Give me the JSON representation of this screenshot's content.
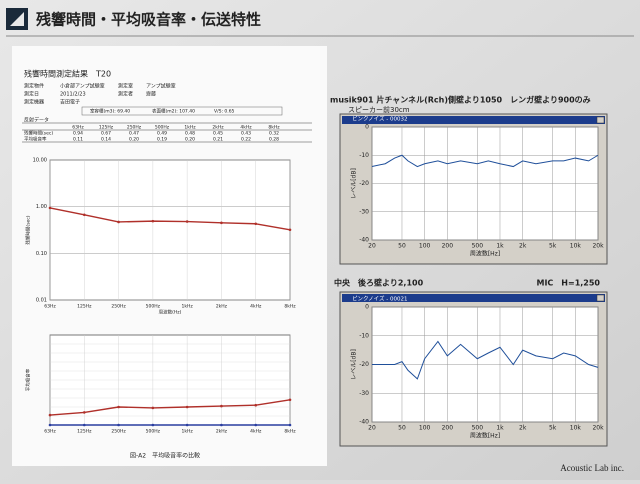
{
  "slide": {
    "title": "残響時間・平均吸音率・伝送特性",
    "footer": "Acoustic Lab inc."
  },
  "report": {
    "heading": "残響時間測定結果　T20",
    "info": [
      [
        "測定物件",
        "小倉部アンプ試験室",
        "測定室",
        "アンプ試験室"
      ],
      [
        "測定日",
        "2011/2/23",
        "測定者",
        "齋藤"
      ],
      [
        "測定機器",
        "吉田電子",
        "",
        ""
      ]
    ],
    "room": [
      "室容積(m3): 69.40",
      "表面積(m2): 107.40",
      "V/S: 0.65"
    ],
    "table": {
      "label": "反射データ",
      "header": [
        "63Hz",
        "125Hz",
        "250Hz",
        "500Hz",
        "1kHz",
        "2kHz",
        "4kHz",
        "8kHz"
      ],
      "rows": [
        [
          "残響時間(sec)",
          "0.94",
          "0.67",
          "0.47",
          "0.49",
          "0.48",
          "0.45",
          "0.43",
          "0.32"
        ],
        [
          "平均吸音率",
          "0.11",
          "0.14",
          "0.20",
          "0.19",
          "0.20",
          "0.21",
          "0.22",
          "0.28"
        ]
      ]
    },
    "caption": "図-A2　平均吸音率の比較"
  },
  "right": {
    "caption1": "musik901 片チャンネル(Rch)側壁より1050　レンガ壁より900のみ",
    "caption2": "スピーカー前30cm",
    "caption3": "中央　後ろ壁より2,100",
    "caption4": "MIC　H=1,250"
  },
  "chart_data": [
    {
      "type": "line",
      "log_y": true,
      "x_label": "周波数(Hz)",
      "y_label": "残響時間(sec)",
      "categories": [
        "63Hz",
        "125Hz",
        "250Hz",
        "500Hz",
        "1kHz",
        "2kHz",
        "4kHz",
        "8kHz"
      ],
      "series": [
        {
          "color": "#b0302a",
          "values": [
            0.94,
            0.67,
            0.47,
            0.49,
            0.48,
            0.45,
            0.43,
            0.32
          ]
        }
      ],
      "ylim": [
        0.01,
        10
      ],
      "yticks": [
        {
          "value": 10,
          "label": "10.00"
        },
        {
          "value": 1,
          "label": "1.00"
        },
        {
          "value": 0.1,
          "label": "0.10"
        },
        {
          "value": 0.01,
          "label": "0.01"
        }
      ]
    },
    {
      "type": "line",
      "y_label": "平均吸音率",
      "categories": [
        "63Hz",
        "125Hz",
        "250Hz",
        "500Hz",
        "1kHz",
        "2kHz",
        "4kHz",
        "8kHz"
      ],
      "series": [
        {
          "color": "#b0302a",
          "values": [
            0.11,
            0.14,
            0.2,
            0.19,
            0.2,
            0.21,
            0.22,
            0.28
          ]
        },
        {
          "color": "#2a3ea0",
          "values": [
            0,
            0,
            0,
            0,
            0,
            0,
            0,
            0
          ]
        }
      ],
      "ylim": [
        0,
        1
      ]
    },
    {
      "type": "line",
      "log_x": true,
      "window_title": "ピンクノイズ - 00032",
      "x_label": "周波数[Hz]",
      "y_label": "レベル[dB]",
      "x": [
        20,
        30,
        40,
        50,
        60,
        80,
        100,
        150,
        200,
        300,
        500,
        700,
        1000,
        1500,
        2000,
        3000,
        5000,
        7000,
        10000,
        15000,
        20000
      ],
      "series": [
        {
          "color": "#1f4f9a",
          "values": [
            -14,
            -13,
            -11,
            -10,
            -12,
            -14,
            -13,
            -12,
            -13,
            -12,
            -13,
            -12,
            -13,
            -14,
            -12,
            -13,
            -12,
            -12,
            -11,
            -12,
            -10
          ]
        }
      ],
      "xlim": [
        20,
        20000
      ],
      "ylim": [
        -40,
        0
      ],
      "xticks": [
        20,
        50,
        100,
        200,
        500,
        {
          "value": 1000,
          "label": "1k"
        },
        {
          "value": 2000,
          "label": "2k"
        },
        {
          "value": 5000,
          "label": "5k"
        },
        {
          "value": 10000,
          "label": "10k"
        },
        {
          "value": 20000,
          "label": "20k"
        }
      ],
      "yticks": [
        0,
        -10,
        -20,
        -30,
        -40
      ]
    },
    {
      "type": "line",
      "log_x": true,
      "window_title": "ピンクノイズ - 00021",
      "x_label": "周波数[Hz]",
      "y_label": "レベル[dB]",
      "x": [
        20,
        30,
        40,
        50,
        60,
        80,
        100,
        150,
        200,
        300,
        500,
        700,
        1000,
        1500,
        2000,
        3000,
        5000,
        7000,
        10000,
        15000,
        20000
      ],
      "series": [
        {
          "color": "#1f4f9a",
          "values": [
            -20,
            -20,
            -20,
            -19,
            -22,
            -25,
            -18,
            -12,
            -17,
            -13,
            -18,
            -16,
            -14,
            -20,
            -15,
            -17,
            -18,
            -16,
            -17,
            -20,
            -21
          ]
        }
      ],
      "xlim": [
        20,
        20000
      ],
      "ylim": [
        -40,
        0
      ],
      "xticks": [
        20,
        50,
        100,
        200,
        500,
        {
          "value": 1000,
          "label": "1k"
        },
        {
          "value": 2000,
          "label": "2k"
        },
        {
          "value": 5000,
          "label": "5k"
        },
        {
          "value": 10000,
          "label": "10k"
        },
        {
          "value": 20000,
          "label": "20k"
        }
      ],
      "yticks": [
        0,
        -10,
        -20,
        -30,
        -40
      ]
    }
  ]
}
